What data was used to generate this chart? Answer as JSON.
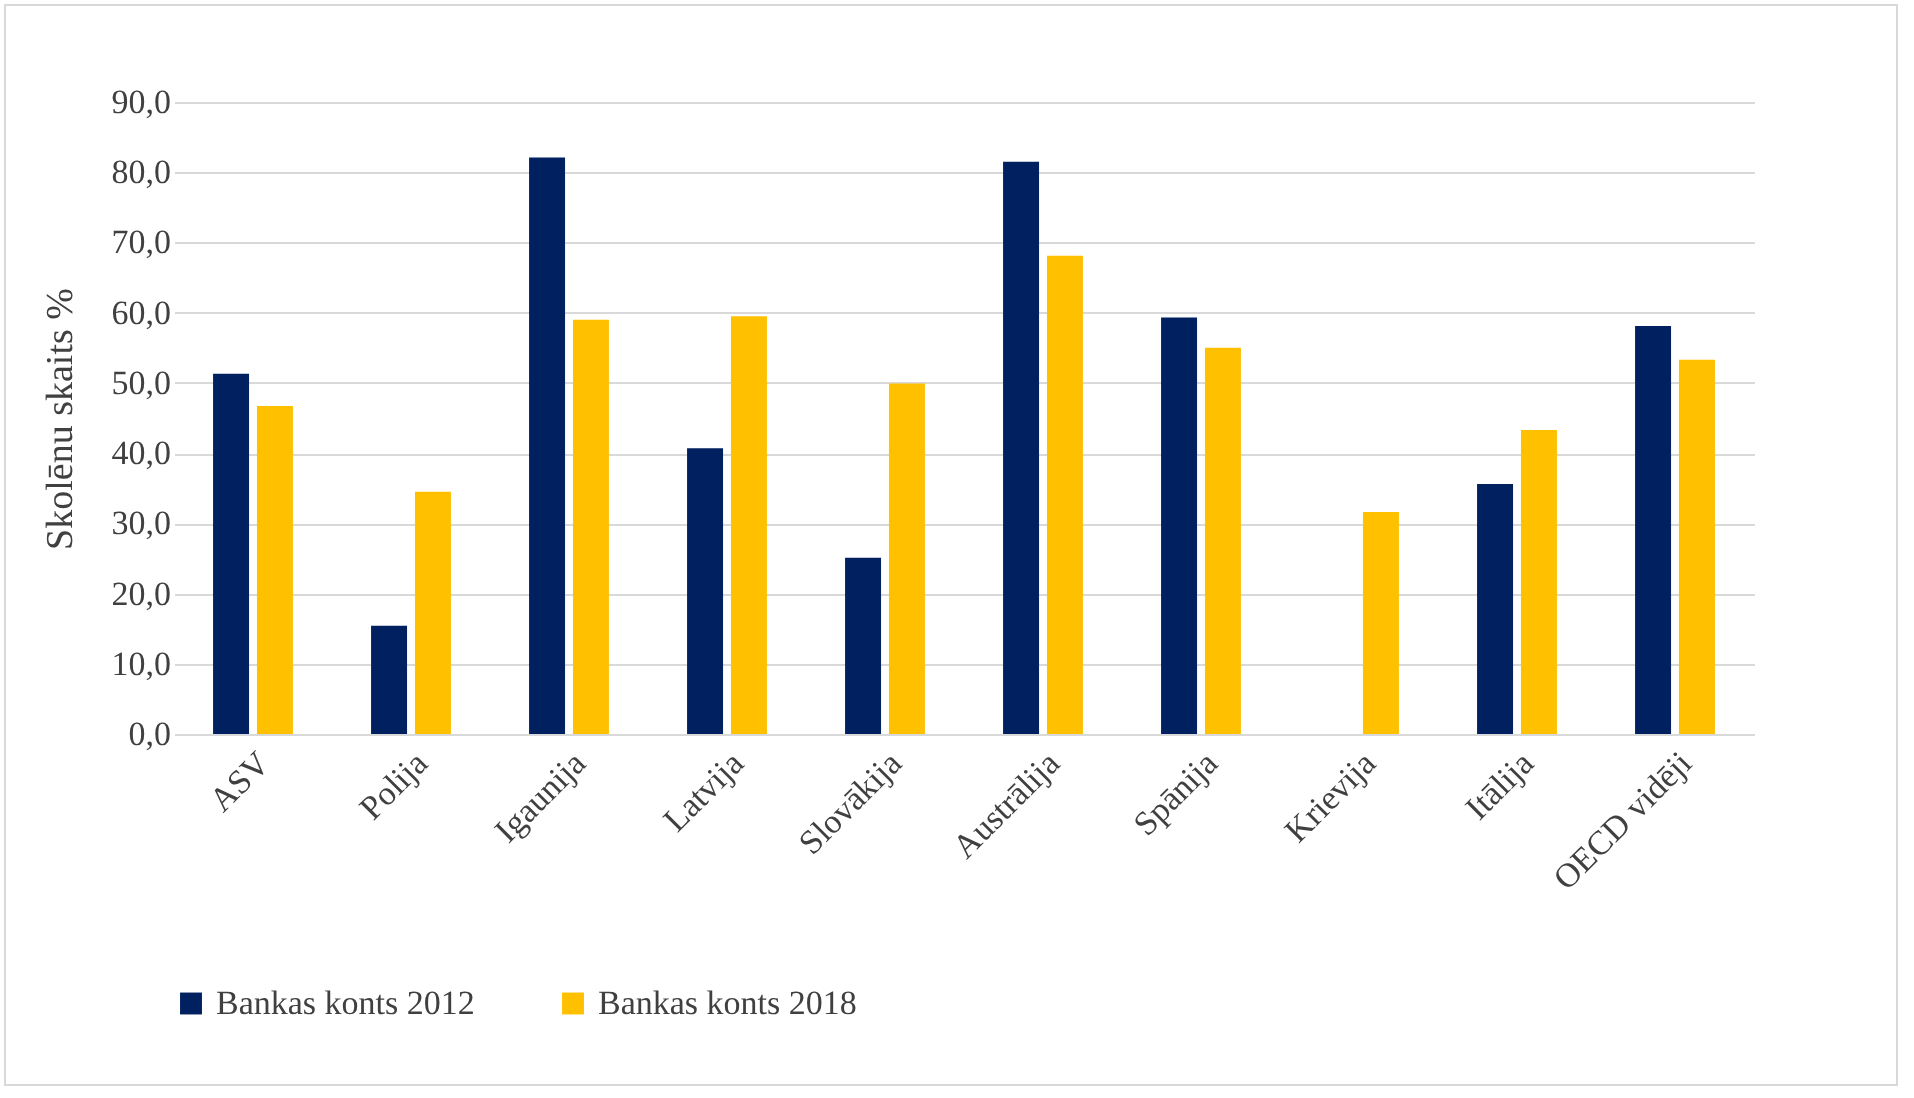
{
  "chart_data": {
    "type": "bar",
    "ylabel": "Skolēnu skaits %",
    "categories": [
      "ASV",
      "Polija",
      "Igaunija",
      "Latvija",
      "Slovākija",
      "Austrālija",
      "Spānija",
      "Krievija",
      "Itālija",
      "OECD vidēji"
    ],
    "series": [
      {
        "name": "Bankas konts 2012",
        "color": "#002060",
        "values": [
          51.3,
          15.4,
          82.1,
          40.7,
          25.1,
          81.5,
          59.3,
          null,
          35.6,
          58.1
        ]
      },
      {
        "name": "Bankas konts 2018",
        "color": "#ffc000",
        "values": [
          46.7,
          34.5,
          59.0,
          59.5,
          49.9,
          68.1,
          55.0,
          31.6,
          43.3,
          53.3
        ]
      }
    ],
    "ylim": [
      0,
      90
    ],
    "yticks": [
      {
        "value": 0,
        "label": "0,0"
      },
      {
        "value": 10,
        "label": "10,0"
      },
      {
        "value": 20,
        "label": "20,0"
      },
      {
        "value": 30,
        "label": "30,0"
      },
      {
        "value": 40,
        "label": "40,0"
      },
      {
        "value": 50,
        "label": "50,0"
      },
      {
        "value": 60,
        "label": "60,0"
      },
      {
        "value": 70,
        "label": "70,0"
      },
      {
        "value": 80,
        "label": "80,0"
      },
      {
        "value": 90,
        "label": "90,0"
      }
    ],
    "grid": "y",
    "legend": "bottom"
  }
}
